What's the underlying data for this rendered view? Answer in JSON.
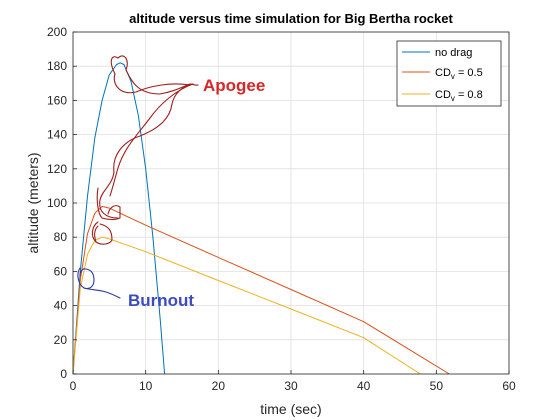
{
  "chart_data": {
    "type": "line",
    "title": "altitude versus time simulation for Big Bertha rocket",
    "xlabel": "time (sec)",
    "ylabel": "altitude (meters)",
    "xlim": [
      0,
      60
    ],
    "ylim": [
      0,
      200
    ],
    "xticks": [
      0,
      10,
      20,
      30,
      40,
      50,
      60
    ],
    "yticks": [
      0,
      20,
      40,
      60,
      80,
      100,
      120,
      140,
      160,
      180,
      200
    ],
    "grid": true,
    "legend_position": "top-right",
    "series": [
      {
        "name": "no drag",
        "color": "#0072bd",
        "x": [
          0,
          1,
          2,
          3,
          4,
          5,
          6,
          6.5,
          7,
          8,
          9,
          10,
          11,
          12,
          12.6
        ],
        "y": [
          0,
          60,
          104,
          138,
          160,
          175,
          181,
          182,
          181,
          171,
          151,
          120,
          80,
          32,
          0
        ]
      },
      {
        "name": "CDv = 0.5",
        "color": "#d95319",
        "x": [
          0,
          1,
          2,
          3,
          4,
          5,
          6,
          10,
          20,
          30,
          40,
          51.8
        ],
        "y": [
          0,
          55,
          82,
          94,
          98,
          97,
          95,
          87,
          68.2,
          49.4,
          30.6,
          0
        ]
      },
      {
        "name": "CDv = 0.8",
        "color": "#edb120",
        "x": [
          0,
          1,
          2,
          3,
          4,
          5,
          10,
          20,
          30,
          40,
          47.8
        ],
        "y": [
          0,
          50,
          70,
          78,
          80,
          79,
          71.5,
          54.7,
          38,
          21.2,
          0
        ]
      }
    ],
    "legend": {
      "entries": [
        {
          "label": "no drag",
          "color": "#0072bd"
        },
        {
          "label": "CD",
          "sub": "v",
          "suffix": " = 0.5",
          "color": "#d95319"
        },
        {
          "label": "CD",
          "sub": "v",
          "suffix": " = 0.8",
          "color": "#edb120"
        }
      ]
    },
    "annotations": [
      {
        "text": "Apogee",
        "color": "#d62828"
      },
      {
        "text": "Burnout",
        "color": "#3b4cc0"
      }
    ]
  }
}
